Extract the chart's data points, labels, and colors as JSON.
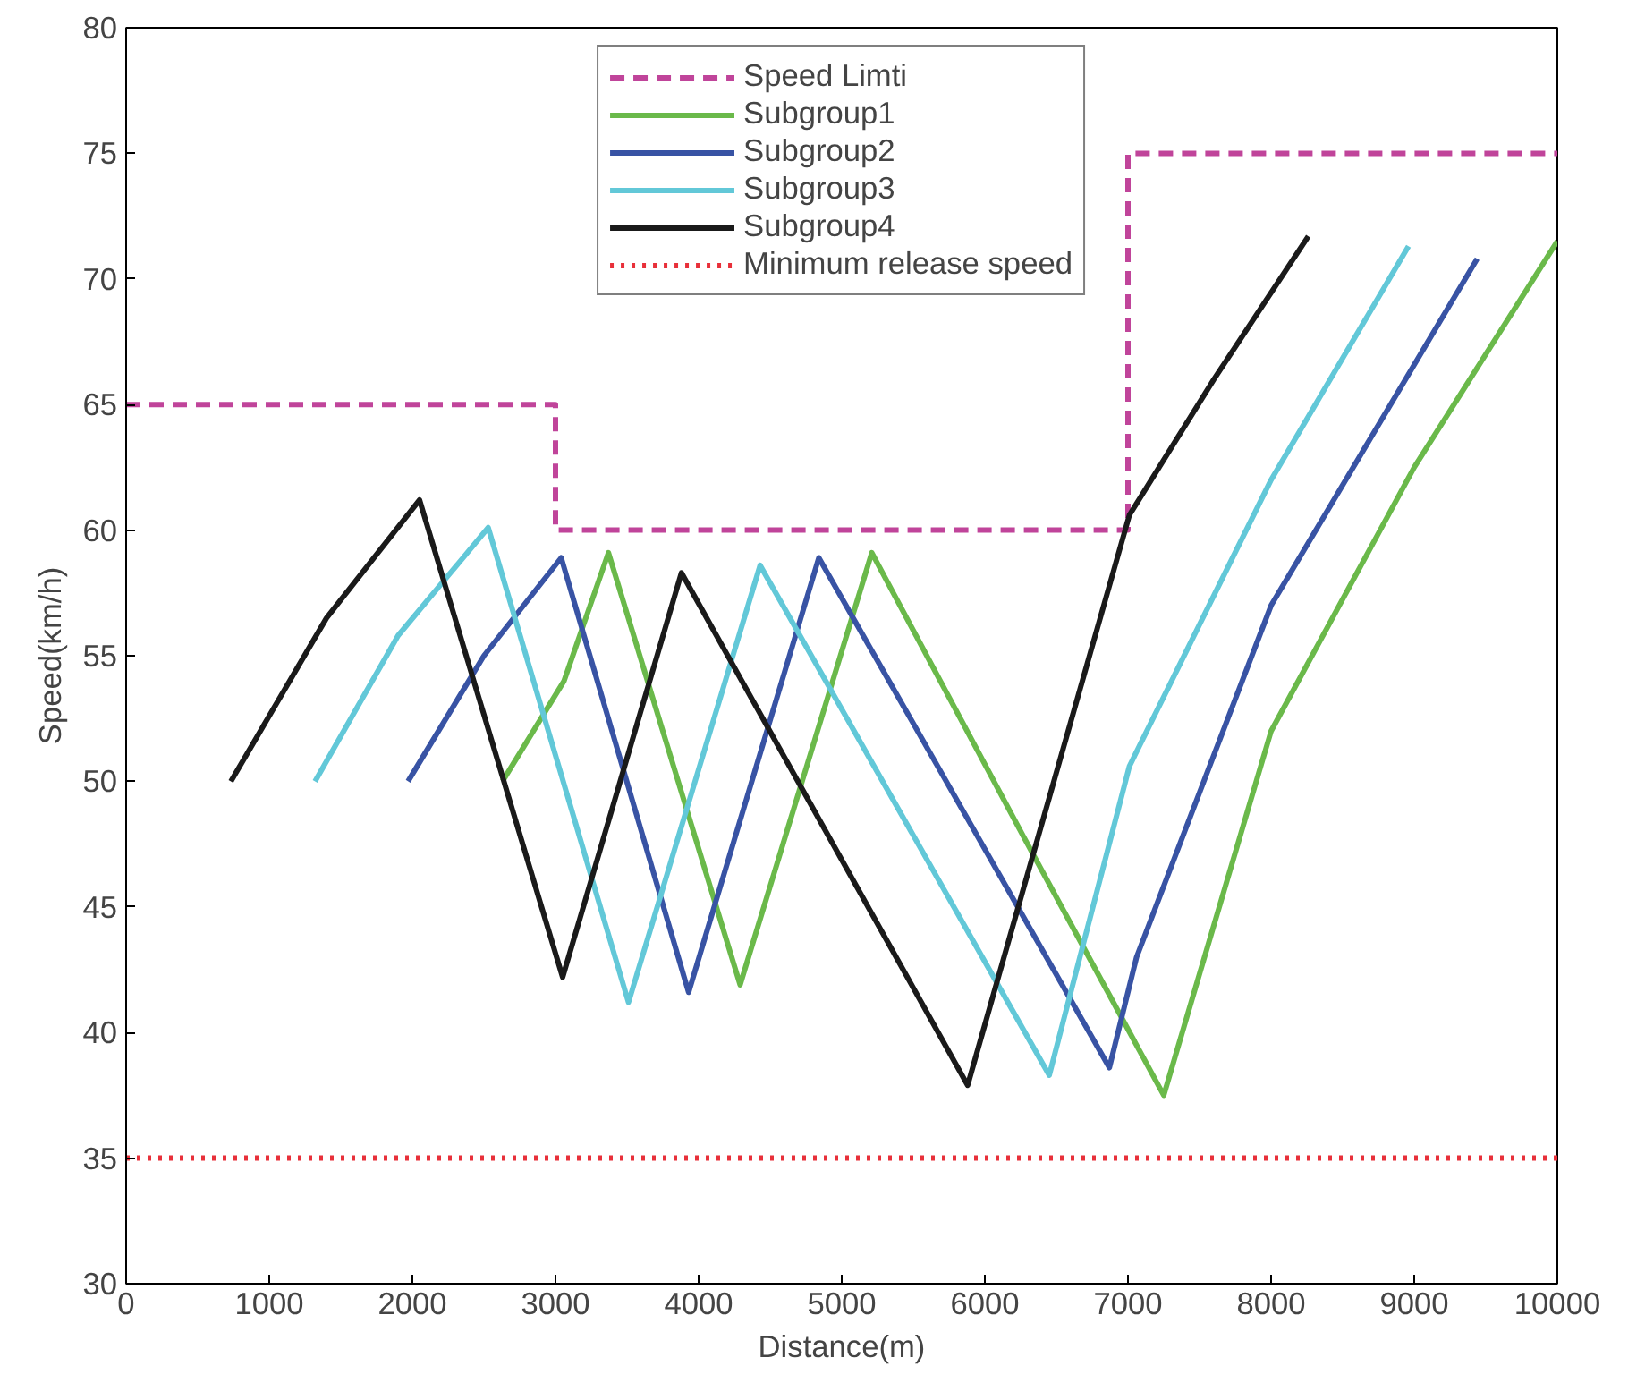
{
  "chart_data": {
    "type": "line",
    "xlabel": "Distance(m)",
    "ylabel": "Speed(km/h)",
    "xlim": [
      0,
      10000
    ],
    "ylim": [
      30,
      80
    ],
    "xticks": [
      0,
      1000,
      2000,
      3000,
      4000,
      5000,
      6000,
      7000,
      8000,
      9000,
      10000
    ],
    "yticks": [
      30,
      35,
      40,
      45,
      50,
      55,
      60,
      65,
      70,
      75,
      80
    ],
    "grid": false,
    "legend": "top",
    "marker": "none",
    "series": [
      {
        "name": "Speed Limti",
        "color": "#c0449a",
        "line_style": "dashed",
        "x": [
          0,
          3000,
          3000,
          7000,
          7000,
          10000
        ],
        "values": [
          65,
          65,
          60,
          60,
          75,
          75
        ]
      },
      {
        "name": "Subgroup1",
        "color": "#6ab94a",
        "line_style": "solid",
        "x": [
          2630,
          3060,
          3370,
          4290,
          5210,
          6270,
          7250,
          8000,
          9000,
          10000
        ],
        "values": [
          50,
          54,
          59.1,
          41.9,
          59.1,
          47.8,
          37.5,
          52,
          62.5,
          71.5
        ]
      },
      {
        "name": "Subgroup2",
        "color": "#3853a4",
        "line_style": "solid",
        "x": [
          1970,
          2500,
          3040,
          3930,
          4840,
          6870,
          7060,
          8000,
          9440
        ],
        "values": [
          50,
          55,
          58.9,
          41.6,
          58.9,
          38.6,
          43,
          57,
          70.8
        ]
      },
      {
        "name": "Subgroup3",
        "color": "#62c8d8",
        "line_style": "solid",
        "x": [
          1320,
          1900,
          2530,
          3510,
          4430,
          6450,
          7010,
          8000,
          8960
        ],
        "values": [
          50,
          55.8,
          60.1,
          41.2,
          58.6,
          38.3,
          50.6,
          62,
          71.3
        ]
      },
      {
        "name": "Subgroup4",
        "color": "#1a1a1a",
        "line_style": "solid",
        "x": [
          732,
          1400,
          2050,
          3050,
          3880,
          5880,
          7010,
          7600,
          8260
        ],
        "values": [
          50,
          56.5,
          61.2,
          42.2,
          58.3,
          37.9,
          60.6,
          66,
          71.7
        ]
      },
      {
        "name": "Minimum release speed",
        "color": "#e8303a",
        "line_style": "dotted",
        "x": [
          0,
          10000
        ],
        "values": [
          35,
          35
        ]
      }
    ]
  }
}
